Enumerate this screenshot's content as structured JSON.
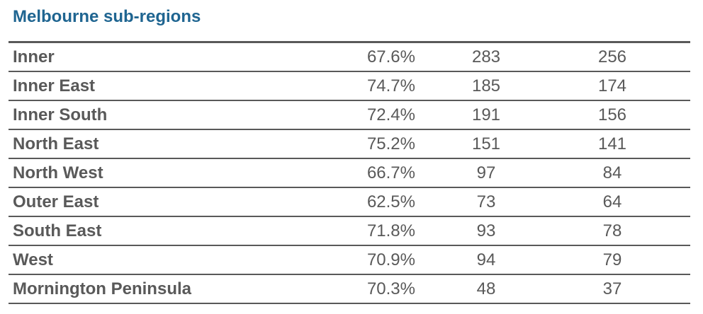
{
  "title": "Melbourne sub-regions",
  "rows": [
    {
      "name": "Inner",
      "pct": "67.6%",
      "a": "283",
      "b": "256"
    },
    {
      "name": "Inner East",
      "pct": "74.7%",
      "a": "185",
      "b": "174"
    },
    {
      "name": "Inner South",
      "pct": "72.4%",
      "a": "191",
      "b": "156"
    },
    {
      "name": "North East",
      "pct": "75.2%",
      "a": "151",
      "b": "141"
    },
    {
      "name": "North West",
      "pct": "66.7%",
      "a": "97",
      "b": "84"
    },
    {
      "name": "Outer East",
      "pct": "62.5%",
      "a": "73",
      "b": "64"
    },
    {
      "name": "South East",
      "pct": "71.8%",
      "a": "93",
      "b": "78"
    },
    {
      "name": "West",
      "pct": "70.9%",
      "a": "94",
      "b": "79"
    },
    {
      "name": "Mornington Peninsula",
      "pct": "70.3%",
      "a": "48",
      "b": "37"
    }
  ],
  "colors": {
    "title": "#1f6591",
    "text": "#595959",
    "rule": "#595959"
  }
}
